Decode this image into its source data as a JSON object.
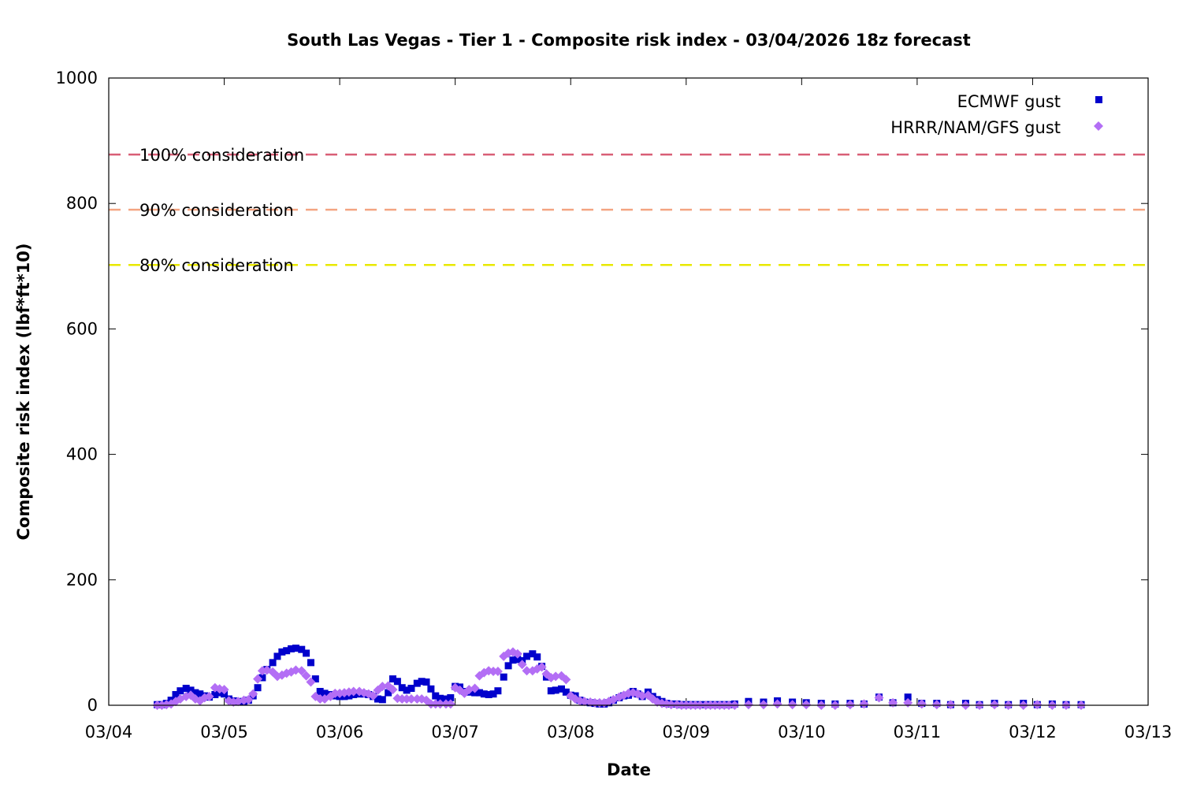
{
  "chart_data": {
    "type": "scatter",
    "title": "South Las Vegas - Tier 1 - Composite risk index - 03/04/2026 18z forecast",
    "xlabel": "Date",
    "ylabel": "Composite risk index (lbf*ft*10)",
    "x_units": "days since 03/04",
    "xlim": [
      0,
      9
    ],
    "ylim": [
      0,
      1000
    ],
    "x_tick_labels": [
      "03/04",
      "03/05",
      "03/06",
      "03/07",
      "03/08",
      "03/09",
      "03/10",
      "03/11",
      "03/12",
      "03/13"
    ],
    "y_ticks": [
      0,
      200,
      400,
      600,
      800,
      1000
    ],
    "grid": false,
    "legend_position": "top-right",
    "reference_lines": [
      {
        "label": "100% consideration",
        "y": 878,
        "color": "#d95f76"
      },
      {
        "label": "90% consideration",
        "y": 790,
        "color": "#f4a582"
      },
      {
        "label": "80% consideration",
        "y": 702,
        "color": "#e8e800"
      }
    ],
    "series": [
      {
        "name": "ECMWF gust",
        "marker": "square",
        "color": "#0000cc",
        "points": [
          [
            0.42,
            1
          ],
          [
            0.46,
            1
          ],
          [
            0.5,
            3
          ],
          [
            0.54,
            8
          ],
          [
            0.58,
            17
          ],
          [
            0.62,
            23
          ],
          [
            0.67,
            27
          ],
          [
            0.71,
            24
          ],
          [
            0.75,
            20
          ],
          [
            0.79,
            18
          ],
          [
            0.83,
            15
          ],
          [
            0.87,
            13
          ],
          [
            0.92,
            17
          ],
          [
            0.96,
            20
          ],
          [
            1.0,
            18
          ],
          [
            1.04,
            10
          ],
          [
            1.08,
            7
          ],
          [
            1.12,
            6
          ],
          [
            1.17,
            6
          ],
          [
            1.21,
            8
          ],
          [
            1.25,
            15
          ],
          [
            1.29,
            28
          ],
          [
            1.33,
            44
          ],
          [
            1.37,
            57
          ],
          [
            1.42,
            68
          ],
          [
            1.46,
            78
          ],
          [
            1.5,
            85
          ],
          [
            1.54,
            87
          ],
          [
            1.58,
            90
          ],
          [
            1.62,
            91
          ],
          [
            1.67,
            89
          ],
          [
            1.71,
            83
          ],
          [
            1.75,
            68
          ],
          [
            1.79,
            42
          ],
          [
            1.83,
            22
          ],
          [
            1.87,
            19
          ],
          [
            1.92,
            17
          ],
          [
            1.96,
            15
          ],
          [
            2.0,
            14
          ],
          [
            2.04,
            14
          ],
          [
            2.08,
            15
          ],
          [
            2.12,
            17
          ],
          [
            2.17,
            18
          ],
          [
            2.21,
            18
          ],
          [
            2.25,
            17
          ],
          [
            2.29,
            14
          ],
          [
            2.33,
            10
          ],
          [
            2.37,
            9
          ],
          [
            2.42,
            20
          ],
          [
            2.46,
            42
          ],
          [
            2.5,
            38
          ],
          [
            2.54,
            28
          ],
          [
            2.58,
            24
          ],
          [
            2.62,
            27
          ],
          [
            2.67,
            35
          ],
          [
            2.71,
            38
          ],
          [
            2.75,
            37
          ],
          [
            2.79,
            26
          ],
          [
            2.83,
            15
          ],
          [
            2.87,
            11
          ],
          [
            2.92,
            10
          ],
          [
            2.96,
            12
          ],
          [
            3.0,
            30
          ],
          [
            3.04,
            29
          ],
          [
            3.08,
            22
          ],
          [
            3.12,
            21
          ],
          [
            3.17,
            20
          ],
          [
            3.21,
            20
          ],
          [
            3.25,
            18
          ],
          [
            3.29,
            17
          ],
          [
            3.33,
            18
          ],
          [
            3.37,
            23
          ],
          [
            3.42,
            45
          ],
          [
            3.46,
            63
          ],
          [
            3.5,
            72
          ],
          [
            3.54,
            73
          ],
          [
            3.58,
            71
          ],
          [
            3.62,
            78
          ],
          [
            3.67,
            82
          ],
          [
            3.71,
            77
          ],
          [
            3.75,
            62
          ],
          [
            3.79,
            45
          ],
          [
            3.83,
            23
          ],
          [
            3.87,
            24
          ],
          [
            3.92,
            26
          ],
          [
            3.96,
            21
          ],
          [
            4.0,
            16
          ],
          [
            4.04,
            15
          ],
          [
            4.08,
            8
          ],
          [
            4.12,
            5
          ],
          [
            4.17,
            4
          ],
          [
            4.21,
            3
          ],
          [
            4.25,
            2
          ],
          [
            4.29,
            2
          ],
          [
            4.33,
            4
          ],
          [
            4.37,
            8
          ],
          [
            4.42,
            12
          ],
          [
            4.46,
            15
          ],
          [
            4.5,
            16
          ],
          [
            4.54,
            22
          ],
          [
            4.58,
            18
          ],
          [
            4.62,
            14
          ],
          [
            4.67,
            21
          ],
          [
            4.71,
            14
          ],
          [
            4.75,
            9
          ],
          [
            4.79,
            6
          ],
          [
            4.83,
            3
          ],
          [
            4.87,
            2
          ],
          [
            4.92,
            2
          ],
          [
            4.96,
            1
          ],
          [
            5.0,
            1
          ],
          [
            5.04,
            1
          ],
          [
            5.08,
            1
          ],
          [
            5.12,
            1
          ],
          [
            5.17,
            1
          ],
          [
            5.21,
            1
          ],
          [
            5.25,
            1
          ],
          [
            5.29,
            1
          ],
          [
            5.33,
            1
          ],
          [
            5.37,
            1
          ],
          [
            5.42,
            2
          ],
          [
            5.54,
            6
          ],
          [
            5.67,
            5
          ],
          [
            5.79,
            7
          ],
          [
            5.92,
            5
          ],
          [
            6.04,
            4
          ],
          [
            6.17,
            3
          ],
          [
            6.29,
            2
          ],
          [
            6.42,
            3
          ],
          [
            6.54,
            2
          ],
          [
            6.67,
            13
          ],
          [
            6.79,
            4
          ],
          [
            6.92,
            13
          ],
          [
            7.04,
            3
          ],
          [
            7.17,
            3
          ],
          [
            7.29,
            1
          ],
          [
            7.42,
            3
          ],
          [
            7.54,
            1
          ],
          [
            7.67,
            3
          ],
          [
            7.79,
            1
          ],
          [
            7.92,
            3
          ],
          [
            8.04,
            1
          ],
          [
            8.17,
            2
          ],
          [
            8.29,
            1
          ],
          [
            8.42,
            1
          ]
        ]
      },
      {
        "name": "HRRR/NAM/GFS gust",
        "marker": "diamond",
        "color": "#b36ef5",
        "points": [
          [
            0.42,
            0
          ],
          [
            0.46,
            0
          ],
          [
            0.5,
            1
          ],
          [
            0.54,
            2
          ],
          [
            0.58,
            6
          ],
          [
            0.62,
            10
          ],
          [
            0.67,
            14
          ],
          [
            0.71,
            16
          ],
          [
            0.75,
            10
          ],
          [
            0.79,
            7
          ],
          [
            0.83,
            12
          ],
          [
            0.87,
            14
          ],
          [
            0.92,
            28
          ],
          [
            0.96,
            26
          ],
          [
            1.0,
            25
          ],
          [
            1.04,
            7
          ],
          [
            1.08,
            5
          ],
          [
            1.12,
            6
          ],
          [
            1.17,
            8
          ],
          [
            1.21,
            9
          ],
          [
            1.25,
            18
          ],
          [
            1.29,
            42
          ],
          [
            1.33,
            55
          ],
          [
            1.37,
            56
          ],
          [
            1.42,
            53
          ],
          [
            1.46,
            46
          ],
          [
            1.5,
            48
          ],
          [
            1.54,
            51
          ],
          [
            1.58,
            53
          ],
          [
            1.62,
            56
          ],
          [
            1.67,
            55
          ],
          [
            1.71,
            47
          ],
          [
            1.75,
            37
          ],
          [
            1.79,
            14
          ],
          [
            1.83,
            10
          ],
          [
            1.87,
            10
          ],
          [
            1.92,
            14
          ],
          [
            1.96,
            19
          ],
          [
            2.0,
            19
          ],
          [
            2.04,
            20
          ],
          [
            2.08,
            21
          ],
          [
            2.12,
            22
          ],
          [
            2.17,
            22
          ],
          [
            2.21,
            20
          ],
          [
            2.25,
            18
          ],
          [
            2.29,
            15
          ],
          [
            2.33,
            24
          ],
          [
            2.37,
            30
          ],
          [
            2.42,
            31
          ],
          [
            2.46,
            25
          ],
          [
            2.5,
            11
          ],
          [
            2.54,
            10
          ],
          [
            2.58,
            10
          ],
          [
            2.62,
            10
          ],
          [
            2.67,
            10
          ],
          [
            2.71,
            10
          ],
          [
            2.75,
            8
          ],
          [
            2.79,
            2
          ],
          [
            2.83,
            2
          ],
          [
            2.87,
            2
          ],
          [
            2.92,
            2
          ],
          [
            2.96,
            2
          ],
          [
            3.0,
            28
          ],
          [
            3.04,
            24
          ],
          [
            3.08,
            19
          ],
          [
            3.12,
            25
          ],
          [
            3.17,
            27
          ],
          [
            3.21,
            47
          ],
          [
            3.25,
            52
          ],
          [
            3.29,
            55
          ],
          [
            3.33,
            54
          ],
          [
            3.37,
            54
          ],
          [
            3.42,
            78
          ],
          [
            3.46,
            83
          ],
          [
            3.5,
            85
          ],
          [
            3.54,
            82
          ],
          [
            3.58,
            65
          ],
          [
            3.62,
            55
          ],
          [
            3.67,
            55
          ],
          [
            3.71,
            58
          ],
          [
            3.75,
            61
          ],
          [
            3.79,
            50
          ],
          [
            3.83,
            44
          ],
          [
            3.87,
            46
          ],
          [
            3.92,
            47
          ],
          [
            3.96,
            41
          ],
          [
            4.0,
            15
          ],
          [
            4.04,
            10
          ],
          [
            4.08,
            7
          ],
          [
            4.12,
            6
          ],
          [
            4.17,
            5
          ],
          [
            4.21,
            4
          ],
          [
            4.25,
            4
          ],
          [
            4.29,
            4
          ],
          [
            4.33,
            6
          ],
          [
            4.37,
            9
          ],
          [
            4.42,
            13
          ],
          [
            4.46,
            16
          ],
          [
            4.5,
            19
          ],
          [
            4.54,
            20
          ],
          [
            4.58,
            18
          ],
          [
            4.62,
            15
          ],
          [
            4.67,
            16
          ],
          [
            4.71,
            10
          ],
          [
            4.75,
            5
          ],
          [
            4.79,
            3
          ],
          [
            4.83,
            2
          ],
          [
            4.87,
            1
          ],
          [
            4.92,
            1
          ],
          [
            4.96,
            0
          ],
          [
            5.0,
            0
          ],
          [
            5.04,
            0
          ],
          [
            5.08,
            0
          ],
          [
            5.12,
            0
          ],
          [
            5.17,
            0
          ],
          [
            5.21,
            0
          ],
          [
            5.25,
            0
          ],
          [
            5.29,
            0
          ],
          [
            5.33,
            0
          ],
          [
            5.37,
            0
          ],
          [
            5.42,
            0
          ],
          [
            5.54,
            1
          ],
          [
            5.67,
            1
          ],
          [
            5.79,
            2
          ],
          [
            5.92,
            1
          ],
          [
            6.04,
            1
          ],
          [
            6.17,
            0
          ],
          [
            6.29,
            0
          ],
          [
            6.42,
            1
          ],
          [
            6.54,
            2
          ],
          [
            6.67,
            12
          ],
          [
            6.79,
            4
          ],
          [
            6.92,
            4
          ],
          [
            7.04,
            2
          ],
          [
            7.17,
            1
          ],
          [
            7.29,
            1
          ],
          [
            7.42,
            0
          ],
          [
            7.54,
            0
          ],
          [
            7.67,
            1
          ],
          [
            7.79,
            0
          ],
          [
            7.92,
            0
          ],
          [
            8.04,
            1
          ],
          [
            8.17,
            0
          ],
          [
            8.29,
            0
          ],
          [
            8.42,
            0
          ]
        ]
      }
    ]
  }
}
